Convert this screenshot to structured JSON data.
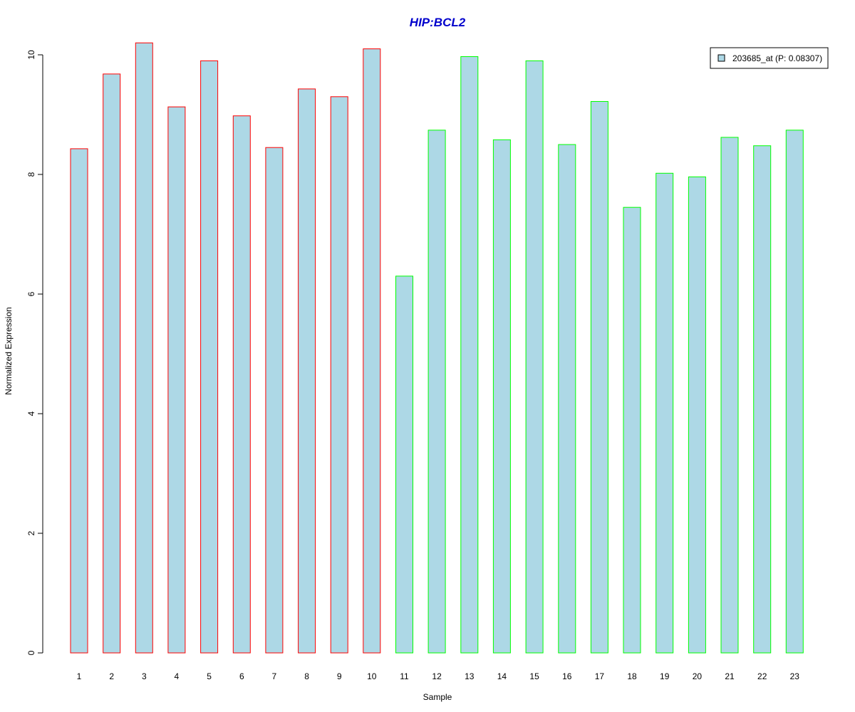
{
  "chart_data": {
    "type": "bar",
    "title": "HIP:BCL2",
    "xlabel": "Sample",
    "ylabel": "Normalized Expression",
    "categories": [
      "1",
      "2",
      "3",
      "4",
      "5",
      "6",
      "7",
      "8",
      "9",
      "10",
      "11",
      "12",
      "13",
      "14",
      "15",
      "16",
      "17",
      "18",
      "19",
      "20",
      "21",
      "22",
      "23"
    ],
    "series": [
      {
        "name": "203685_at (P: 0.08307)",
        "values": [
          8.43,
          9.68,
          10.2,
          9.13,
          9.9,
          8.98,
          8.45,
          9.43,
          9.3,
          10.1,
          6.3,
          8.74,
          9.97,
          8.58,
          9.9,
          8.5,
          9.22,
          7.45,
          8.02,
          7.96,
          8.62,
          8.48,
          8.74
        ]
      }
    ],
    "group_colors": [
      "#ff0000",
      "#ff0000",
      "#ff0000",
      "#ff0000",
      "#ff0000",
      "#ff0000",
      "#ff0000",
      "#ff0000",
      "#ff0000",
      "#ff0000",
      "#00ff00",
      "#00ff00",
      "#00ff00",
      "#00ff00",
      "#00ff00",
      "#00ff00",
      "#00ff00",
      "#00ff00",
      "#00ff00",
      "#00ff00",
      "#00ff00",
      "#00ff00",
      "#00ff00"
    ],
    "bar_fill": "#add8e6",
    "title_color": "#0000cc",
    "yticks": [
      0,
      2,
      4,
      6,
      8,
      10
    ],
    "ylim": [
      0,
      10.2
    ],
    "grid": false,
    "legend_position": "top-right"
  }
}
